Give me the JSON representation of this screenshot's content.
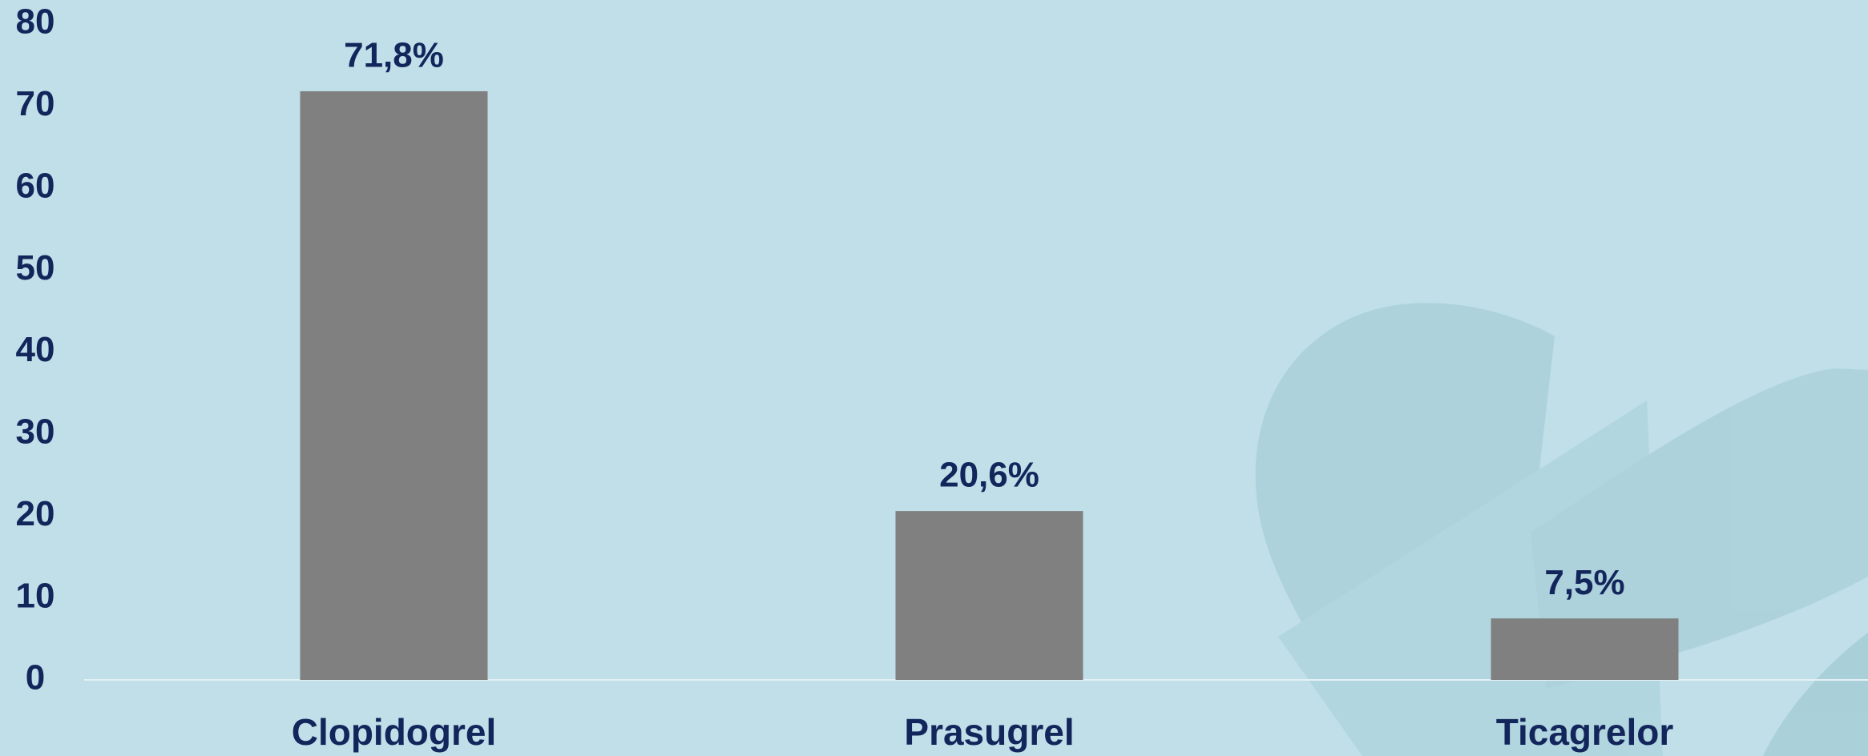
{
  "chart_data": {
    "type": "bar",
    "categories": [
      "Clopidogrel",
      "Prasugrel",
      "Ticagrelor"
    ],
    "values": [
      71.8,
      20.6,
      7.5
    ],
    "value_labels": [
      "71,8%",
      "20,6%",
      "7,5%"
    ],
    "color": "#808080",
    "ylim": [
      0,
      80
    ],
    "yticks": [
      0,
      10,
      20,
      30,
      40,
      50,
      60,
      70,
      80
    ],
    "grid": false
  }
}
